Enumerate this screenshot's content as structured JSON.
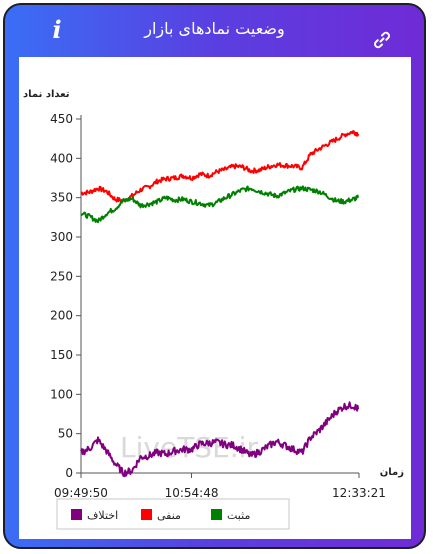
{
  "header": {
    "title": "وضعیت نمادهای بازار",
    "info_icon": "info-icon",
    "link_icon": "link-icon"
  },
  "watermark": "LiveTSE.ir",
  "chart_data": {
    "type": "line",
    "title": "",
    "xlabel": "زمان",
    "ylabel": "تعداد نماد",
    "ylim": [
      0,
      450
    ],
    "yticks": [
      0,
      50,
      100,
      150,
      200,
      250,
      300,
      350,
      400,
      450
    ],
    "x_range": [
      "09:49:50",
      "12:33:21"
    ],
    "xtick_labels": [
      "09:49:50",
      "10:54:48",
      "12:33:21"
    ],
    "xtick_minutes": [
      0,
      65,
      163.5
    ],
    "grid": false,
    "legend_position": "bottom",
    "series": [
      {
        "name": "منفی",
        "color": "#ff0000",
        "x_minutes": [
          0,
          5,
          10,
          15,
          20,
          25,
          30,
          35,
          40,
          45,
          50,
          55,
          60,
          65,
          70,
          75,
          80,
          85,
          90,
          95,
          100,
          105,
          110,
          115,
          120,
          125,
          130,
          135,
          140,
          145,
          150,
          155,
          160,
          163
        ],
        "values": [
          356,
          357,
          362,
          358,
          348,
          346,
          352,
          360,
          364,
          371,
          374,
          375,
          378,
          375,
          380,
          378,
          383,
          386,
          390,
          389,
          384,
          385,
          389,
          392,
          391,
          390,
          388,
          405,
          412,
          418,
          424,
          430,
          434,
          431
        ]
      },
      {
        "name": "مثبت",
        "color": "#008000",
        "x_minutes": [
          0,
          5,
          10,
          15,
          20,
          25,
          30,
          35,
          40,
          45,
          50,
          55,
          60,
          65,
          70,
          75,
          80,
          85,
          90,
          95,
          100,
          105,
          110,
          115,
          120,
          125,
          130,
          135,
          140,
          145,
          150,
          155,
          160,
          163
        ],
        "values": [
          330,
          326,
          320,
          330,
          336,
          346,
          349,
          340,
          342,
          345,
          350,
          347,
          348,
          345,
          343,
          340,
          344,
          350,
          355,
          360,
          362,
          358,
          355,
          352,
          356,
          360,
          362,
          360,
          358,
          352,
          346,
          345,
          348,
          350
        ]
      },
      {
        "name": "اختلاف",
        "color": "#800080",
        "x_minutes": [
          0,
          5,
          10,
          15,
          20,
          25,
          30,
          35,
          40,
          45,
          50,
          55,
          60,
          65,
          70,
          75,
          80,
          85,
          90,
          95,
          100,
          105,
          110,
          115,
          120,
          125,
          130,
          135,
          140,
          145,
          150,
          155,
          160,
          163
        ],
        "values": [
          26,
          31,
          42,
          28,
          12,
          0,
          3,
          20,
          22,
          26,
          24,
          28,
          30,
          30,
          37,
          38,
          39,
          36,
          35,
          29,
          22,
          27,
          34,
          40,
          35,
          30,
          26,
          45,
          54,
          66,
          78,
          85,
          86,
          81
        ]
      }
    ]
  }
}
